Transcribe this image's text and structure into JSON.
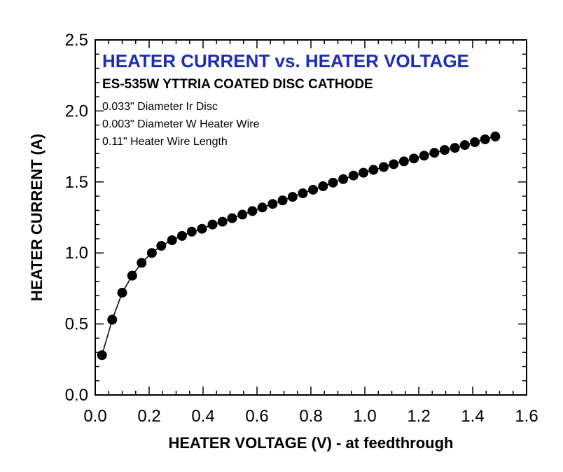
{
  "chart_data": {
    "type": "line",
    "title": "HEATER CURRENT vs. HEATER VOLTAGE",
    "subtitle": "ES-535W YTTRIA COATED DISC CATHODE",
    "annotations": [
      "0.033\" Diameter Ir Disc",
      "0.003\" Diameter W Heater Wire",
      "0.11\" Heater Wire Length"
    ],
    "xlabel": "HEATER VOLTAGE (V) - at feedthrough",
    "ylabel": "HEATER CURRENT (A)",
    "xlim": [
      0.0,
      1.6
    ],
    "ylim": [
      0.0,
      2.5
    ],
    "xticks": [
      "0.0",
      "0.2",
      "0.4",
      "0.6",
      "0.8",
      "1.0",
      "1.2",
      "1.4",
      "1.6"
    ],
    "yticks": [
      "0.0",
      "0.5",
      "1.0",
      "1.5",
      "2.0",
      "2.5"
    ],
    "grid": false,
    "marker": "filled-circle",
    "colors": {
      "series": "#000000",
      "title": "#1f2db4"
    },
    "series": [
      {
        "x": [
          0.025,
          0.063,
          0.1,
          0.137,
          0.172,
          0.21,
          0.245,
          0.285,
          0.322,
          0.358,
          0.396,
          0.435,
          0.472,
          0.508,
          0.546,
          0.583,
          0.62,
          0.658,
          0.695,
          0.732,
          0.77,
          0.808,
          0.845,
          0.882,
          0.92,
          0.958,
          0.995,
          1.032,
          1.07,
          1.107,
          1.145,
          1.182,
          1.22,
          1.258,
          1.296,
          1.334,
          1.371,
          1.408,
          1.446,
          1.484
        ],
        "y": [
          0.28,
          0.53,
          0.72,
          0.84,
          0.93,
          1.0,
          1.05,
          1.09,
          1.12,
          1.15,
          1.17,
          1.2,
          1.22,
          1.245,
          1.27,
          1.295,
          1.32,
          1.345,
          1.37,
          1.395,
          1.42,
          1.445,
          1.47,
          1.495,
          1.52,
          1.545,
          1.565,
          1.585,
          1.605,
          1.625,
          1.645,
          1.665,
          1.685,
          1.705,
          1.725,
          1.74,
          1.76,
          1.78,
          1.8,
          1.82
        ]
      }
    ]
  }
}
